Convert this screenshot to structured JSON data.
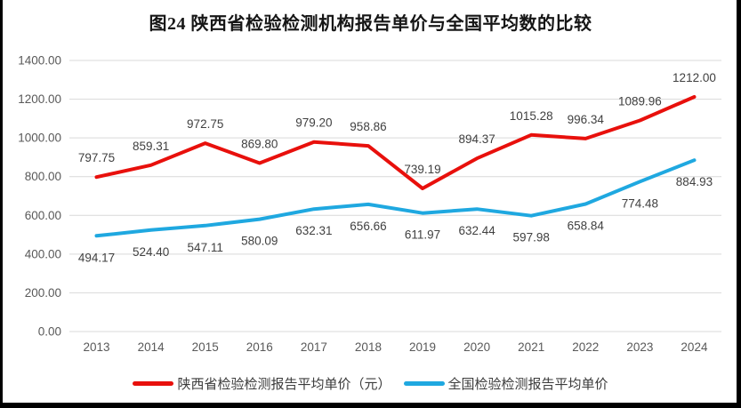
{
  "title": "图24 陕西省检验检测机构报告单价与全国平均数的比较",
  "chart_data": {
    "type": "line",
    "title": "图24 陕西省检验检测机构报告单价与全国平均数的比较",
    "categories": [
      "2013",
      "2014",
      "2015",
      "2016",
      "2017",
      "2018",
      "2019",
      "2020",
      "2021",
      "2022",
      "2023",
      "2024"
    ],
    "series": [
      {
        "name": "陕西省检验检测报告平均单价（元）",
        "color": "#e8100c",
        "label_position": "above",
        "values": [
          797.75,
          859.31,
          972.75,
          869.8,
          979.2,
          958.86,
          739.19,
          894.37,
          1015.28,
          996.34,
          1089.96,
          1212.0
        ]
      },
      {
        "name": "全国检验检测报告平均单价",
        "color": "#1fa8e0",
        "label_position": "below",
        "values": [
          494.17,
          524.4,
          547.11,
          580.09,
          632.31,
          656.66,
          611.97,
          632.44,
          597.98,
          658.84,
          774.48,
          884.93
        ]
      }
    ],
    "xlabel": "",
    "ylabel": "",
    "ylim": [
      0,
      1400
    ],
    "ytick_step": 200,
    "ytick_decimals": 2,
    "grid": true,
    "gridline_color": "#d9d9d9",
    "tick_label_color": "#595959",
    "data_label_color": "#404040",
    "legend_position": "bottom"
  }
}
